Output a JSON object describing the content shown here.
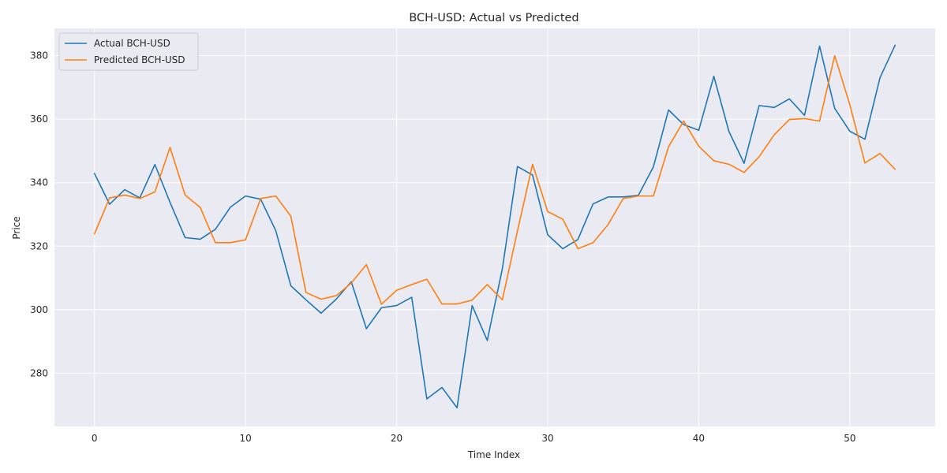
{
  "chart_data": {
    "type": "line",
    "title": "BCH-USD: Actual vs Predicted",
    "xlabel": "Time Index",
    "ylabel": "Price",
    "xlim": [
      -2.65,
      55.65
    ],
    "ylim": [
      263.2,
      388.6
    ],
    "xticks": [
      0,
      10,
      20,
      30,
      40,
      50
    ],
    "yticks": [
      280,
      300,
      320,
      340,
      360,
      380
    ],
    "grid": true,
    "legend_position": "top-left",
    "x": [
      0,
      1,
      2,
      3,
      4,
      5,
      6,
      7,
      8,
      9,
      10,
      11,
      12,
      13,
      14,
      15,
      16,
      17,
      18,
      19,
      20,
      21,
      22,
      23,
      24,
      25,
      26,
      27,
      28,
      29,
      30,
      31,
      32,
      33,
      34,
      35,
      36,
      37,
      38,
      39,
      40,
      41,
      42,
      43,
      44,
      45,
      46,
      47,
      48,
      49,
      50,
      51,
      52,
      53
    ],
    "series": [
      {
        "name": "Actual BCH-USD",
        "color": "#1f77b4",
        "values": [
          342.9,
          333.2,
          337.8,
          335.2,
          345.7,
          333.8,
          322.7,
          322.2,
          325.3,
          332.3,
          335.8,
          334.8,
          324.9,
          307.5,
          303.1,
          298.9,
          303.3,
          308.8,
          294.0,
          300.6,
          301.3,
          303.9,
          271.9,
          275.5,
          269.1,
          301.3,
          290.3,
          312.9,
          345.1,
          342.4,
          323.6,
          319.2,
          322.1,
          333.3,
          335.5,
          335.5,
          336.0,
          345.0,
          362.9,
          358.3,
          356.5,
          373.5,
          356.1,
          346.1,
          364.3,
          363.7,
          366.4,
          361.2,
          383.0,
          363.4,
          356.2,
          353.7,
          373.1,
          383.3
        ]
      },
      {
        "name": "Predicted BCH-USD",
        "color": "#ff7f0e",
        "values": [
          323.9,
          335.2,
          336.1,
          335.0,
          337.1,
          351.1,
          336.1,
          332.2,
          321.1,
          321.1,
          322.0,
          335.0,
          335.8,
          329.4,
          305.4,
          303.3,
          304.4,
          308.4,
          314.2,
          301.7,
          306.1,
          307.9,
          309.6,
          301.8,
          301.8,
          303.0,
          307.9,
          303.1,
          324.8,
          345.8,
          330.9,
          328.5,
          319.2,
          321.1,
          326.8,
          335.0,
          335.8,
          335.8,
          351.3,
          359.4,
          351.5,
          346.9,
          345.8,
          343.2,
          348.2,
          355.1,
          359.9,
          360.2,
          359.4,
          380.0,
          364.6,
          346.2,
          349.2,
          344.2
        ]
      }
    ]
  }
}
